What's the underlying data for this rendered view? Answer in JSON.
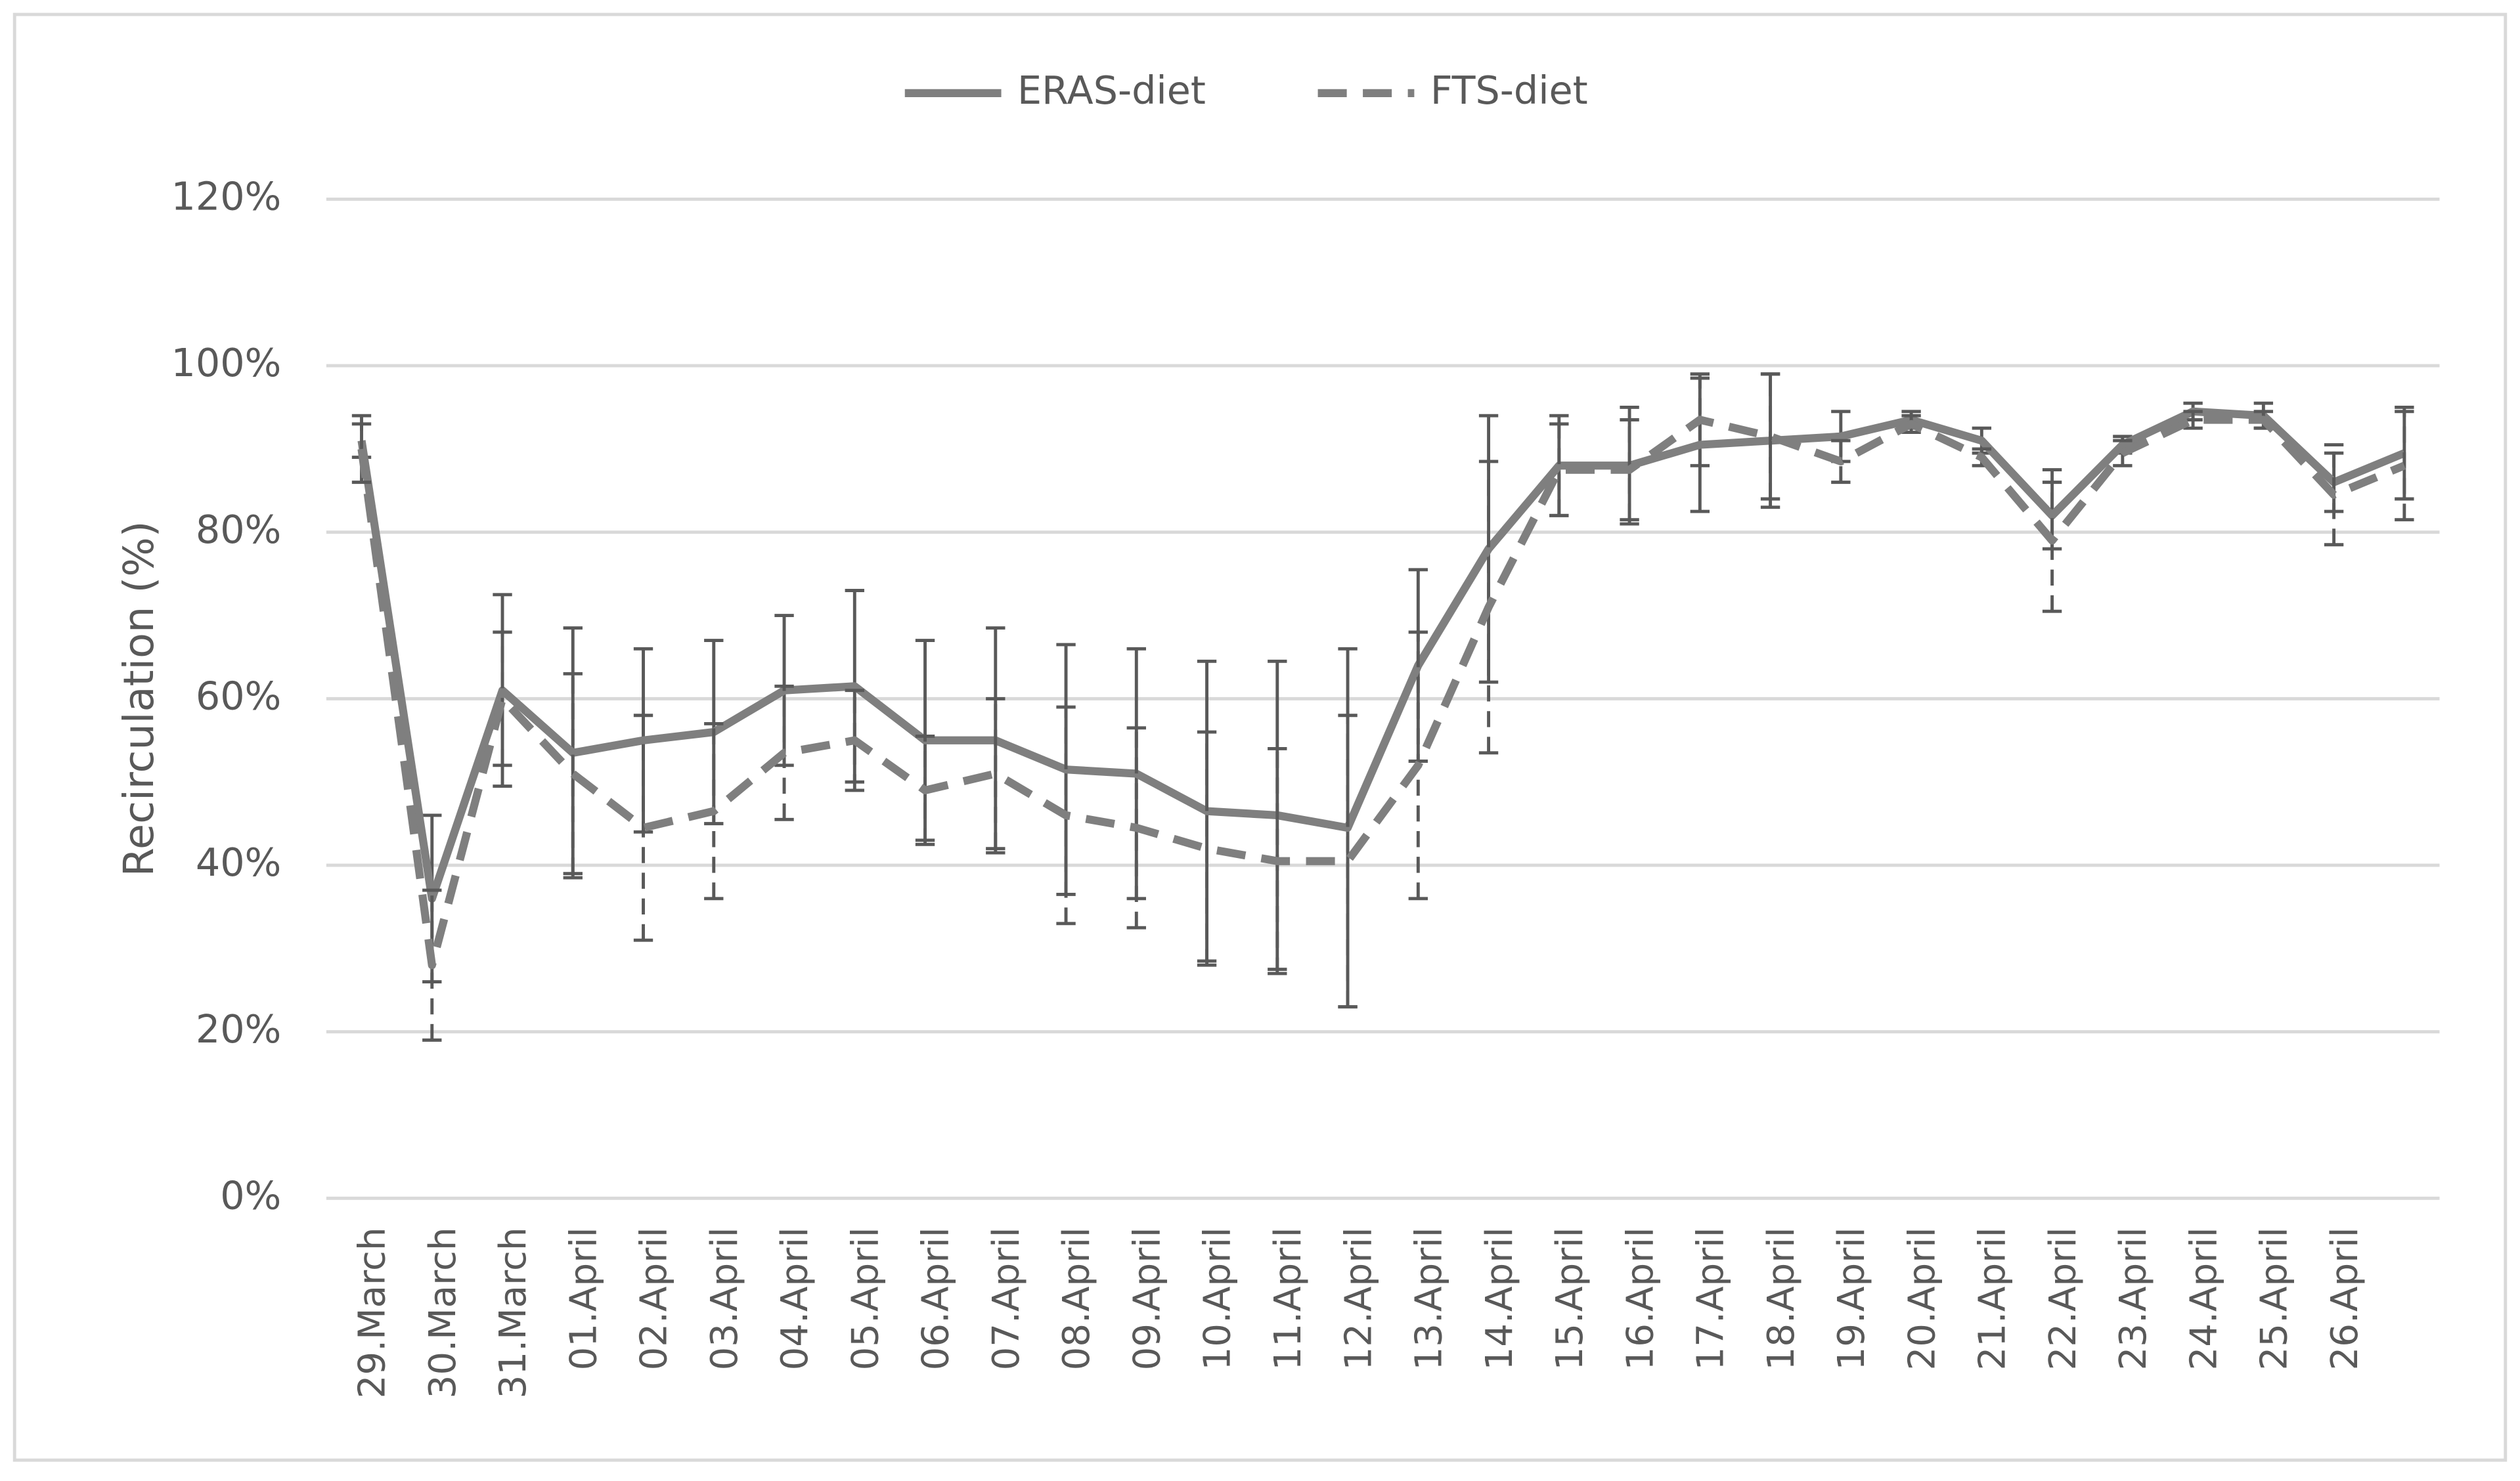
{
  "chart_data": {
    "type": "line",
    "y_label": "Recirculation (%)",
    "categories": [
      "29.March",
      "30.March",
      "31.March",
      "01.April",
      "02.April",
      "03.April",
      "04.April",
      "05.April",
      "06.April",
      "07.April",
      "08.April",
      "09.April",
      "10.April",
      "11.April",
      "12.April",
      "13.April",
      "14.April",
      "15.April",
      "16.April",
      "17.April",
      "18.April",
      "19.April",
      "20.April",
      "21.April",
      "22.April",
      "23.April",
      "24.April",
      "25.April",
      "26.April",
      null
    ],
    "series": [
      {
        "name": "ERAS-diet",
        "color": "#7f7f7f",
        "dash": "solid",
        "values": [
          91,
          36,
          61,
          53.5,
          55,
          56,
          61,
          61.5,
          55,
          55,
          51.5,
          51,
          46.5,
          46,
          44.5,
          64,
          78,
          88,
          88,
          90.5,
          91,
          91.5,
          93.5,
          91,
          82,
          90.5,
          94.5,
          94,
          86,
          89.5
        ],
        "errors": [
          2,
          10,
          11.5,
          15,
          11,
          11,
          9,
          11.5,
          12,
          13.5,
          15,
          15,
          18,
          18.5,
          21.5,
          11.5,
          16,
          6,
          7,
          8,
          8,
          3,
          1,
          1.5,
          4,
          1,
          1,
          1.5,
          3.5,
          5.5
        ]
      },
      {
        "name": "FTS-diet",
        "color": "#7f7f7f",
        "dash": "dashed",
        "values": [
          90,
          28,
          60,
          51,
          44.5,
          46.5,
          53.5,
          55,
          49,
          51,
          46,
          44.5,
          42,
          40.5,
          40.5,
          52,
          71,
          87.5,
          87.5,
          93.5,
          91.5,
          88.5,
          93,
          89,
          79,
          89.5,
          93.5,
          93.5,
          84.5,
          88
        ],
        "errors": [
          4,
          9,
          8,
          12,
          13.5,
          10.5,
          8,
          6,
          6.5,
          9,
          13,
          12,
          14,
          13.5,
          17.5,
          16,
          17.5,
          5.5,
          6,
          5.5,
          7.5,
          2.5,
          1,
          1,
          8.5,
          1.5,
          1,
          1,
          6,
          6.5
        ]
      }
    ],
    "ylim": [
      0,
      120
    ],
    "yticks": [
      {
        "value": 0,
        "label": "0%"
      },
      {
        "value": 20,
        "label": "20%"
      },
      {
        "value": 40,
        "label": "40%"
      },
      {
        "value": 60,
        "label": "60%"
      },
      {
        "value": 80,
        "label": "80%"
      },
      {
        "value": 100,
        "label": "100%"
      },
      {
        "value": 120,
        "label": "120%"
      }
    ],
    "grid": true,
    "legend": "top"
  }
}
